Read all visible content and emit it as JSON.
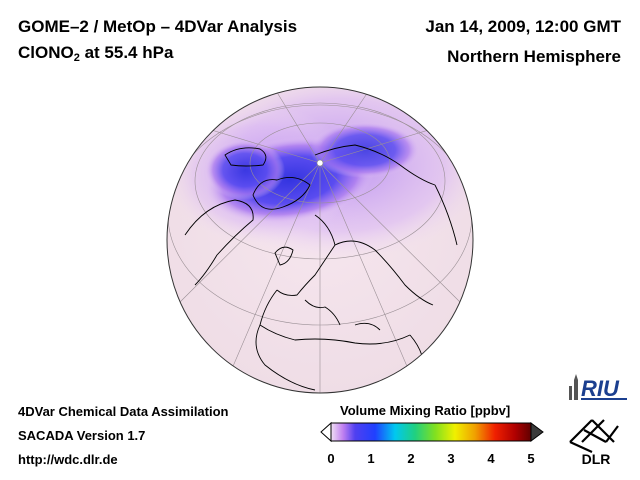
{
  "header": {
    "title": "GOME–2 / MetOp – 4DVar Analysis",
    "species_base": "ClONO",
    "species_sub": "2",
    "species_level": " at 55.4 hPa",
    "date": "Jan 14, 2009, 12:00 GMT",
    "region": "Northern Hemisphere"
  },
  "footer": {
    "line1": "4DVar Chemical Data Assimilation",
    "line2": "SACADA Version 1.7",
    "line3": "http://wdc.dlr.de"
  },
  "colorbar": {
    "title": "Volume Mixing Ratio [ppbv]",
    "ticks": [
      "0",
      "1",
      "2",
      "3",
      "4",
      "5"
    ],
    "min": 0,
    "max": 5
  },
  "logos": {
    "riu": "RIU",
    "dlr": "DLR"
  },
  "colors": {
    "ocean_background": "#f4e8ee",
    "low_value": "#3b3de8",
    "mid_value": "#c070f0",
    "coastline": "#000000"
  },
  "icons": [
    "globe-map",
    "riu-logo",
    "dlr-logo"
  ]
}
